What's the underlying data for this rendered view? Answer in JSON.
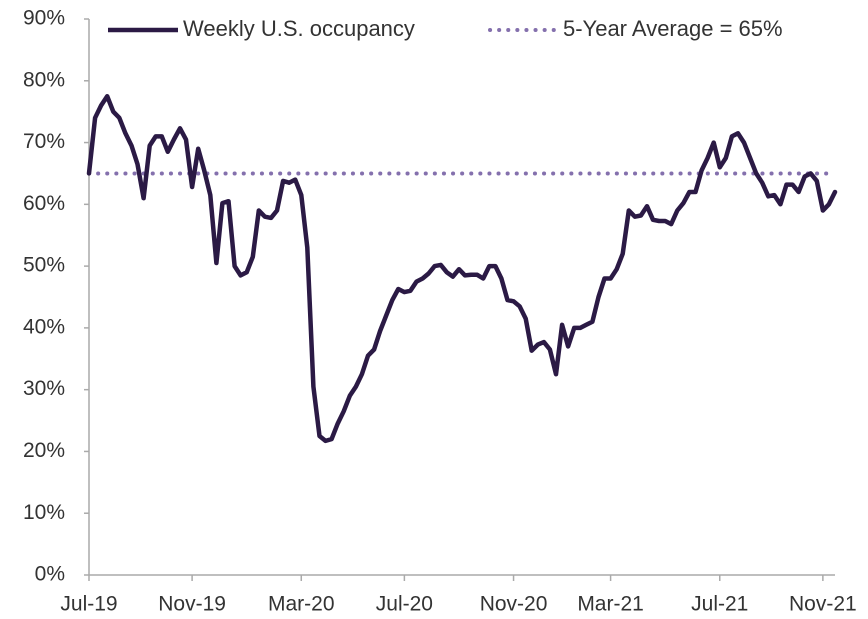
{
  "chart_data": {
    "type": "line",
    "categories": [
      "Jul-19",
      null,
      null,
      null,
      null,
      null,
      null,
      null,
      null,
      null,
      null,
      null,
      null,
      null,
      null,
      null,
      null,
      "Nov-19",
      null,
      null,
      null,
      null,
      null,
      null,
      null,
      null,
      null,
      null,
      null,
      null,
      null,
      null,
      null,
      null,
      null,
      "Mar-20",
      null,
      null,
      null,
      null,
      null,
      null,
      null,
      null,
      null,
      null,
      null,
      null,
      null,
      null,
      null,
      null,
      "Jul-20",
      null,
      null,
      null,
      null,
      null,
      null,
      null,
      null,
      null,
      null,
      null,
      null,
      null,
      null,
      null,
      null,
      null,
      "Nov-20",
      null,
      null,
      null,
      null,
      null,
      null,
      null,
      null,
      null,
      null,
      null,
      null,
      null,
      null,
      null,
      "Mar-21",
      null,
      null,
      null,
      null,
      null,
      null,
      null,
      null,
      null,
      null,
      null,
      null,
      null,
      null,
      null,
      null,
      null,
      "Jul-21",
      null,
      null,
      null,
      null,
      null,
      null,
      null,
      null,
      null,
      null,
      null,
      null,
      null,
      null,
      null,
      null,
      "Nov-21",
      null,
      null
    ],
    "series": [
      {
        "name": "Weekly U.S. occupancy",
        "color": "#2b1a45",
        "values": [
          65,
          74,
          76,
          77.5,
          75,
          74,
          71.5,
          69.5,
          66.5,
          61,
          69.5,
          71,
          71,
          68.5,
          70.5,
          72.3,
          70.5,
          62.8,
          69,
          65.5,
          61.5,
          50.5,
          60.2,
          60.5,
          50,
          48.5,
          49,
          51.5,
          59,
          58,
          57.8,
          59,
          63.8,
          63.5,
          64,
          61.5,
          53,
          30.5,
          22.5,
          21.7,
          22,
          24.5,
          26.5,
          29,
          30.5,
          32.5,
          35.5,
          36.5,
          39.5,
          42,
          44.5,
          46.3,
          45.8,
          46,
          47.5,
          48,
          48.8,
          50,
          50.2,
          49,
          48.3,
          49.5,
          48.5,
          48.6,
          48.6,
          48,
          50,
          50,
          48,
          44.5,
          44.3,
          43.5,
          41.5,
          36.3,
          37.3,
          37.7,
          36.5,
          32.5,
          40.5,
          37,
          40,
          40,
          40.5,
          41,
          45,
          48,
          48,
          49.5,
          52,
          59,
          58,
          58.2,
          59.7,
          57.5,
          57.3,
          57.3,
          56.8,
          59,
          60.2,
          62,
          62,
          65.5,
          67.5,
          70,
          66,
          67.5,
          71,
          71.5,
          70,
          67.5,
          65,
          63.5,
          61.3,
          61.5,
          60,
          63.2,
          63.2,
          62,
          64.5,
          65,
          63.8,
          59,
          60,
          62
        ]
      }
    ],
    "reference_line": {
      "name": "5-Year Average = 65%",
      "value": 65,
      "color": "#8470ad"
    },
    "ylim": [
      0,
      90
    ],
    "yticks": [
      {
        "value": 0,
        "label": "0%"
      },
      {
        "value": 10,
        "label": "10%"
      },
      {
        "value": 20,
        "label": "20%"
      },
      {
        "value": 30,
        "label": "30%"
      },
      {
        "value": 40,
        "label": "40%"
      },
      {
        "value": 50,
        "label": "50%"
      },
      {
        "value": 60,
        "label": "60%"
      },
      {
        "value": 70,
        "label": "70%"
      },
      {
        "value": 80,
        "label": "80%"
      },
      {
        "value": 90,
        "label": "90%"
      }
    ],
    "grid": false
  }
}
